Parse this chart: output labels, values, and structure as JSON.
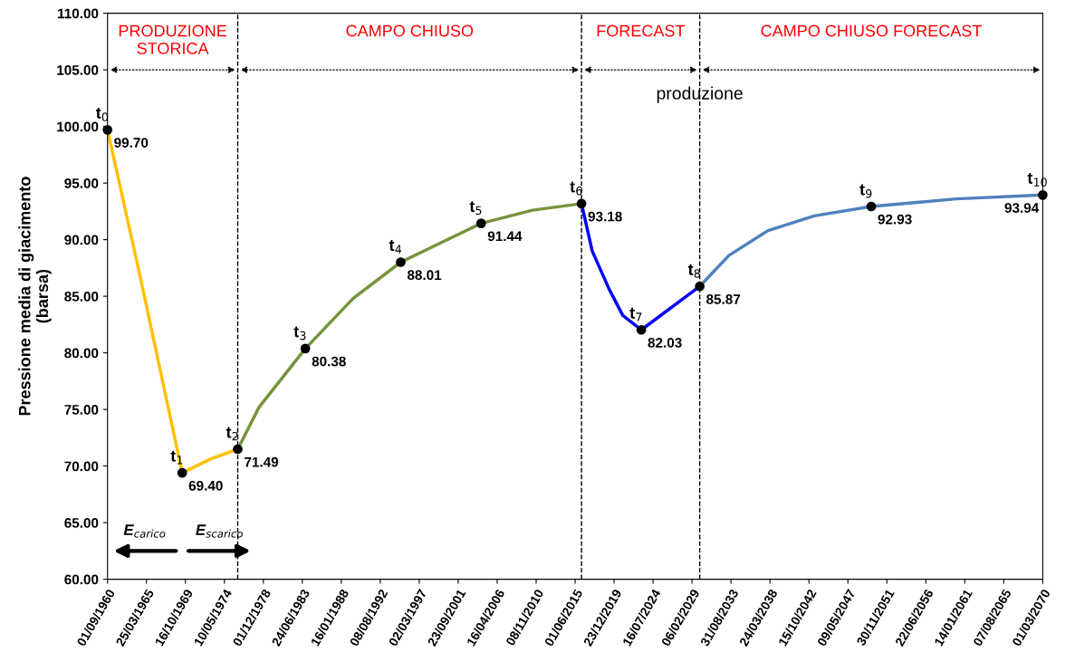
{
  "chart_data": {
    "type": "line",
    "ylabel": "Pressione media di giacimento\n(barsa)",
    "series": [
      {
        "color": "#ffc000",
        "x": [
          "1960-09-01",
          "1964-06-01",
          "1969-06-01",
          "1972-09-01",
          "1975-12-01"
        ],
        "values": [
          99.7,
          87.0,
          69.4,
          70.6,
          71.49
        ]
      },
      {
        "color": "#77933c",
        "x": [
          "1975-12-01",
          "1978-06-01",
          "1983-11-01",
          "1989-06-01",
          "1995-01-01",
          "2004-06-01",
          "2010-06-01",
          "2016-03-01"
        ],
        "values": [
          71.49,
          75.2,
          80.38,
          84.8,
          88.01,
          91.44,
          92.6,
          93.18
        ]
      },
      {
        "color": "#0000ff",
        "x": [
          "2016-03-01",
          "2017-06-01",
          "2019-06-01",
          "2021-01-01",
          "2023-03-01",
          "2030-01-01"
        ],
        "values": [
          93.18,
          89.0,
          85.6,
          83.3,
          82.03,
          85.87
        ]
      },
      {
        "color": "#4f81bd",
        "x": [
          "2030-01-01",
          "2033-06-01",
          "2038-01-01",
          "2043-06-01",
          "2050-02-01",
          "2060-01-01",
          "2070-03-01"
        ],
        "values": [
          85.87,
          88.6,
          90.8,
          92.1,
          92.93,
          93.6,
          93.94
        ]
      },
      {
        "type": "scatter",
        "marker": "circle",
        "color": "#000000",
        "x": [
          "1960-09-01",
          "1969-06-01",
          "1975-12-01",
          "1983-11-01",
          "1995-01-01",
          "2004-06-01",
          "2016-03-01",
          "2023-03-01",
          "2030-01-01",
          "2050-02-01",
          "2070-03-01"
        ],
        "values": [
          99.7,
          69.4,
          71.49,
          80.38,
          88.01,
          91.44,
          93.18,
          82.03,
          85.87,
          92.93,
          93.94
        ],
        "value_labels": [
          "99.70",
          "69.40",
          "71.49",
          "80.38",
          "88.01",
          "91.44",
          "93.18",
          "82.03",
          "85.87",
          "92.93",
          "93.94"
        ]
      }
    ],
    "xlim": [
      "1960-09-01",
      "2070-03-01"
    ],
    "xticks": [
      {
        "value": "1960-09-01",
        "label": "01/09/1960"
      },
      {
        "value": "1965-03-25",
        "label": "25/03/1965"
      },
      {
        "value": "1969-10-16",
        "label": "16/10/1969"
      },
      {
        "value": "1974-05-10",
        "label": "10/05/1974"
      },
      {
        "value": "1978-12-01",
        "label": "01/12/1978"
      },
      {
        "value": "1983-06-24",
        "label": "24/06/1983"
      },
      {
        "value": "1988-01-16",
        "label": "16/01/1988"
      },
      {
        "value": "1992-08-08",
        "label": "08/08/1992"
      },
      {
        "value": "1997-03-02",
        "label": "02/03/1997"
      },
      {
        "value": "2001-09-23",
        "label": "23/09/2001"
      },
      {
        "value": "2006-04-16",
        "label": "16/04/2006"
      },
      {
        "value": "2010-11-08",
        "label": "08/11/2010"
      },
      {
        "value": "2015-06-01",
        "label": "01/06/2015"
      },
      {
        "value": "2019-12-23",
        "label": "23/12/2019"
      },
      {
        "value": "2024-07-16",
        "label": "16/07/2024"
      },
      {
        "value": "2029-02-06",
        "label": "06/02/2029"
      },
      {
        "value": "2033-08-31",
        "label": "31/08/2033"
      },
      {
        "value": "2038-03-24",
        "label": "24/03/2038"
      },
      {
        "value": "2042-10-15",
        "label": "15/10/2042"
      },
      {
        "value": "2047-05-09",
        "label": "09/05/2047"
      },
      {
        "value": "2051-11-30",
        "label": "30/11/2051"
      },
      {
        "value": "2056-06-22",
        "label": "22/06/2056"
      },
      {
        "value": "2061-01-14",
        "label": "14/01/2061"
      },
      {
        "value": "2065-08-07",
        "label": "07/08/2065"
      },
      {
        "value": "2070-03-01",
        "label": "01/03/2070"
      }
    ],
    "ylim": [
      60,
      110
    ],
    "yticks": [
      {
        "value": 60,
        "label": "60.00"
      },
      {
        "value": 65,
        "label": "65.00"
      },
      {
        "value": 70,
        "label": "70.00"
      },
      {
        "value": 75,
        "label": "75.00"
      },
      {
        "value": 80,
        "label": "80.00"
      },
      {
        "value": 85,
        "label": "85.00"
      },
      {
        "value": 90,
        "label": "90.00"
      },
      {
        "value": 95,
        "label": "95.00"
      },
      {
        "value": 100,
        "label": "100.00"
      },
      {
        "value": 105,
        "label": "105.00"
      },
      {
        "value": 110,
        "label": "110.00"
      }
    ],
    "ref_lines": [
      {
        "axis": "x",
        "value": "1975-12-01",
        "color": "#000000",
        "line_style": "dashed"
      },
      {
        "axis": "x",
        "value": "2016-03-01",
        "color": "#000000",
        "line_style": "dashed"
      },
      {
        "axis": "x",
        "value": "2030-01-01",
        "color": "#000000",
        "line_style": "dashed"
      }
    ],
    "annotations": [
      "PRODUZIONE\nSTORICA",
      "CAMPO CHIUSO",
      "FORECAST",
      "CAMPO CHIUSO FORECAST",
      "E$_{carico}$",
      "E$_{scarico}$",
      {
        "text": "produzione",
        "x": "2030-01-01",
        "y": 102.8
      },
      {
        "text": "t$_{0}$",
        "x": "1960-09-01",
        "y": 99.7
      },
      {
        "text": "t$_{1}$",
        "x": "1969-06-01",
        "y": 69.4
      },
      {
        "text": "t$_{2}$",
        "x": "1975-12-01",
        "y": 71.49
      },
      {
        "text": "t$_{3}$",
        "x": "1983-11-01",
        "y": 80.38
      },
      {
        "text": "t$_{4}$",
        "x": "1995-01-01",
        "y": 88.01
      },
      {
        "text": "t$_{5}$",
        "x": "2004-06-01",
        "y": 91.44
      },
      {
        "text": "t$_{6}$",
        "x": "2016-03-01",
        "y": 93.18
      },
      {
        "text": "t$_{7}$",
        "x": "2023-03-01",
        "y": 82.03
      },
      {
        "text": "t$_{8}$",
        "x": "2030-01-01",
        "y": 85.87
      },
      {
        "text": "t$_{9}$",
        "x": "2050-02-01",
        "y": 92.93
      },
      {
        "text": "t$_{10}$",
        "x": "2070-03-01",
        "y": 93.94
      }
    ],
    "grid": false,
    "line_style": "solid"
  }
}
